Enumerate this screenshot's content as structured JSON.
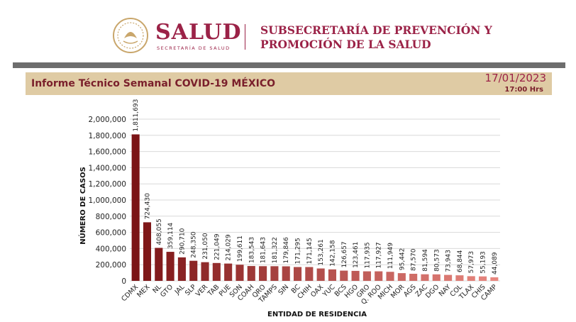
{
  "header": {
    "brand": "SALUD",
    "brand_sub": "SECRETARÍA DE SALUD",
    "subtitle_line1": "SUBSECRETARÍA DE PREVENCIÓN Y",
    "subtitle_line2": "PROMOCIÓN DE LA SALUD"
  },
  "report": {
    "title": "Informe Técnico Semanal COVID-19 MÉXICO",
    "date": "17/01/2023",
    "time": "17:00 Hrs"
  },
  "colors": {
    "brand": "#9b2247",
    "band": "#dfcba4",
    "bar_dark": "#7b1416",
    "bar_light": "#e8877f"
  },
  "chart_data": {
    "type": "bar",
    "xlabel": "ENTIDAD DE RESIDENCIA",
    "ylabel": "NÚMERO DE CASOS",
    "ylim": [
      0,
      2000000
    ],
    "yticks": [
      0,
      200000,
      400000,
      600000,
      800000,
      1000000,
      1200000,
      1400000,
      1600000,
      1800000,
      2000000
    ],
    "ytick_labels": [
      "0",
      "200,000",
      "400,000",
      "600,000",
      "800,000",
      "1,000,000",
      "1,200,000",
      "1,400,000",
      "1,600,000",
      "1,800,000",
      "2,000,000"
    ],
    "grid": true,
    "categories": [
      "CDMX",
      "MEX",
      "NL",
      "GTO",
      "JAL",
      "SLP",
      "VER",
      "TAB",
      "PUE",
      "SON",
      "COAH",
      "QRO",
      "TAMPS",
      "SIN",
      "BC",
      "CHIH",
      "OAX",
      "YUC",
      "BCS",
      "HGO",
      "GRO",
      "Q. ROO",
      "MICH",
      "MOR",
      "AGS",
      "ZAC",
      "DGO",
      "NAY",
      "COL",
      "TLAX",
      "CHIS",
      "CAMP"
    ],
    "values": [
      1811693,
      724430,
      408055,
      359114,
      290710,
      248350,
      231050,
      221049,
      214029,
      199611,
      183543,
      181643,
      181322,
      179846,
      171295,
      171145,
      153261,
      142158,
      126657,
      123461,
      117935,
      117927,
      111949,
      95442,
      87570,
      81594,
      80573,
      73943,
      68844,
      57973,
      55193,
      44089
    ],
    "value_labels": [
      "1,811,693",
      "724,430",
      "408,055",
      "359,114",
      "290,710",
      "248,350",
      "231,050",
      "221,049",
      "214,029",
      "199,611",
      "183,543",
      "181,643",
      "181,322",
      "179,846",
      "171,295",
      "171,145",
      "153,261",
      "142,158",
      "126,657",
      "123,461",
      "117,935",
      "117,927",
      "111,949",
      "95,442",
      "87,570",
      "81,594",
      "80,573",
      "73,943",
      "68,844",
      "57,973",
      "55,193",
      "44,089"
    ]
  }
}
